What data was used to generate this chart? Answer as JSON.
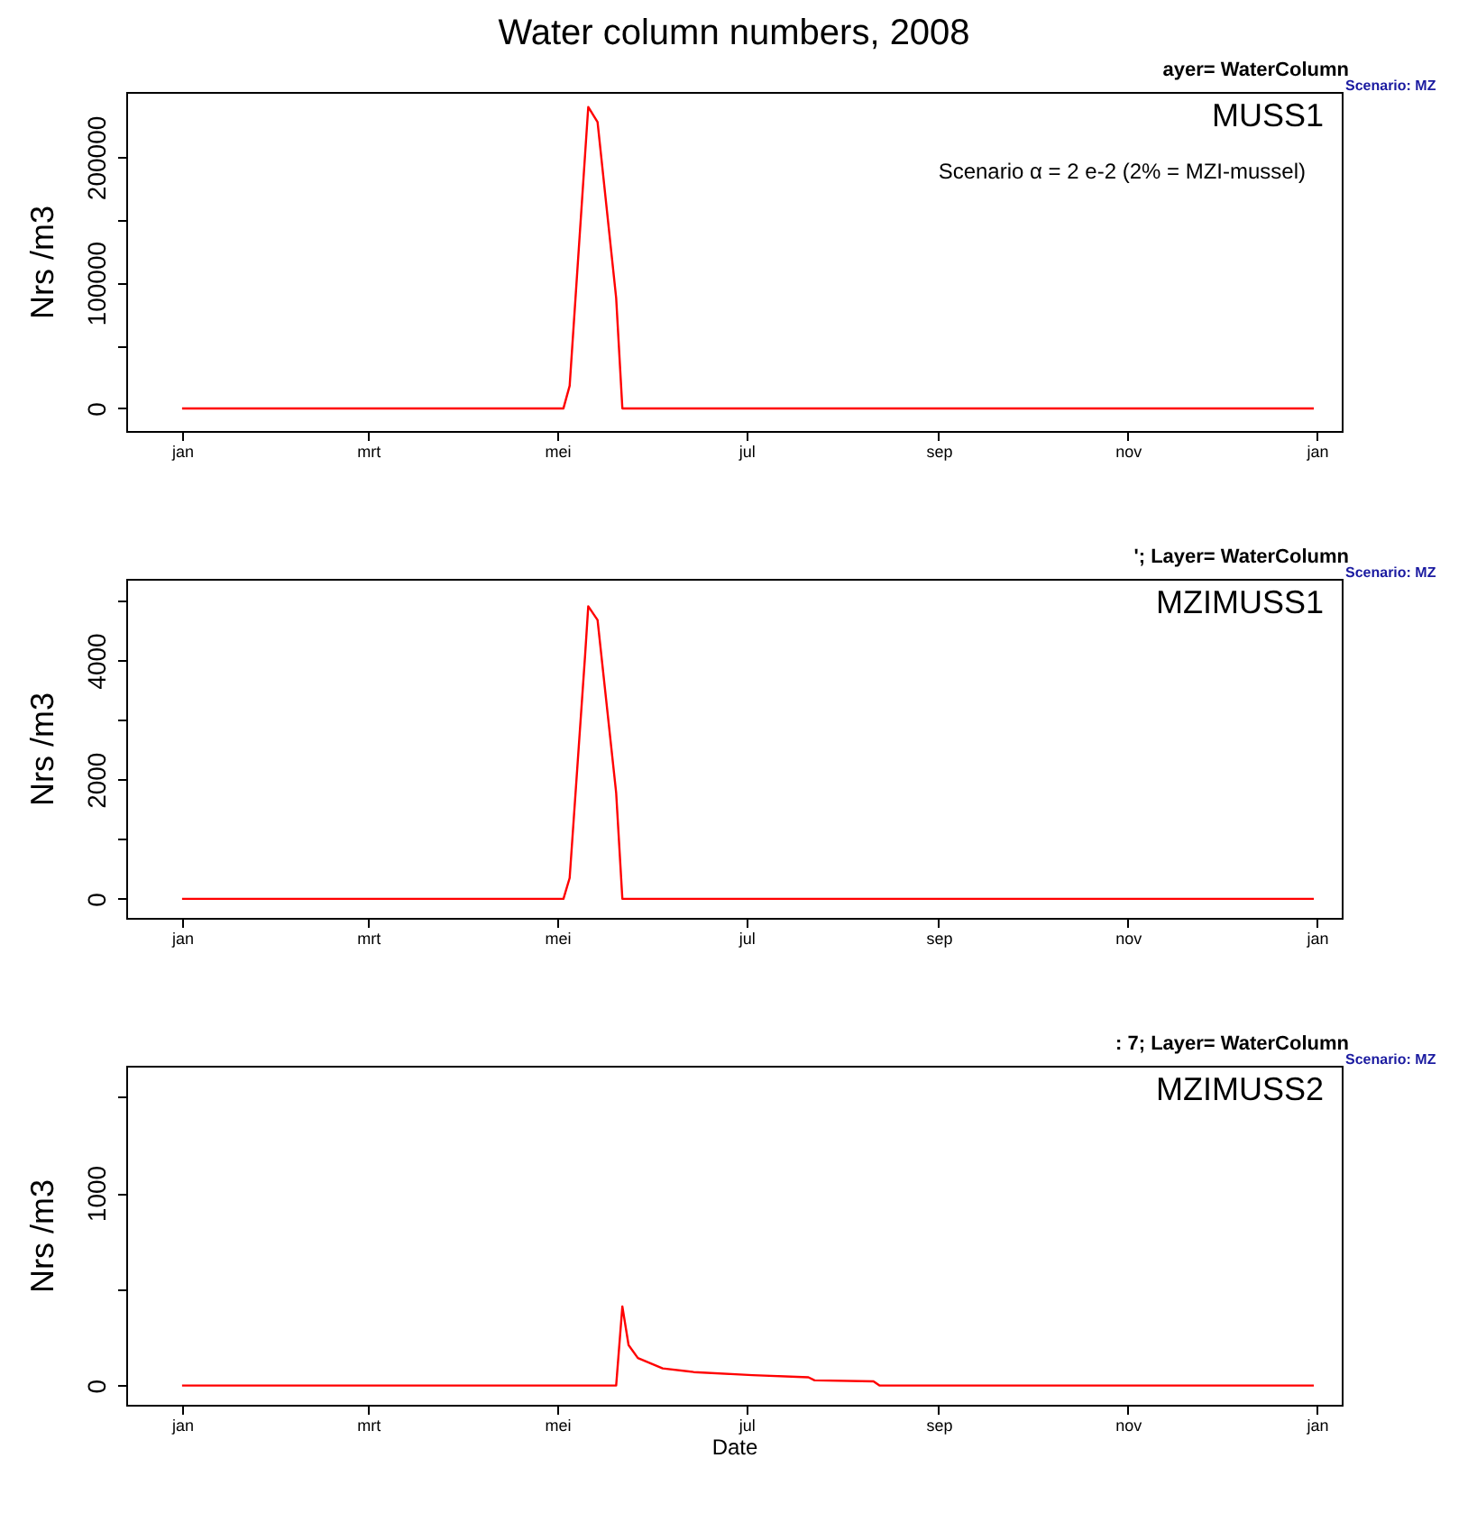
{
  "chart_data": [
    {
      "type": "line",
      "title": "Water column numbers, 2008",
      "ylabel": "Nrs /m3",
      "annotations": [
        "MUSS1",
        "Scenario α = 2 e-2 (2% = MZI-mussel)",
        "ayer= WaterColumn",
        "Scenario: MZ"
      ],
      "xlim": [
        "2007-12-14",
        "2009-01-09"
      ],
      "xticks": [
        {
          "value": "2008-01-01",
          "label": "jan"
        },
        {
          "value": "2008-03-01",
          "label": "mrt"
        },
        {
          "value": "2008-05-01",
          "label": "mei"
        },
        {
          "value": "2008-07-01",
          "label": "jul"
        },
        {
          "value": "2008-09-01",
          "label": "sep"
        },
        {
          "value": "2008-11-01",
          "label": "nov"
        },
        {
          "value": "2009-01-01",
          "label": "jan"
        }
      ],
      "ylim": [
        -18000,
        252000
      ],
      "yticks": [
        0,
        {
          "value": 50000,
          "label": null
        },
        100000,
        {
          "value": 150000,
          "label": null
        },
        200000
      ],
      "x": [
        "2008-01-01",
        "2008-05-03",
        "2008-05-05",
        "2008-05-10",
        "2008-05-11",
        "2008-05-14",
        "2008-05-20",
        "2008-05-22",
        "2008-12-31"
      ],
      "series": [
        {
          "color": "#ff0000",
          "values": [
            0,
            0,
            18000,
            203000,
            240000,
            228000,
            88000,
            0,
            0
          ]
        }
      ]
    },
    {
      "type": "line",
      "ylabel": "Nrs /m3",
      "annotations": [
        "MZIMUSS1",
        "'; Layer= WaterColumn",
        "Scenario: MZ"
      ],
      "xlim": [
        "2007-12-14",
        "2009-01-09"
      ],
      "xticks": [
        {
          "value": "2008-01-01",
          "label": "jan"
        },
        {
          "value": "2008-03-01",
          "label": "mrt"
        },
        {
          "value": "2008-05-01",
          "label": "mei"
        },
        {
          "value": "2008-07-01",
          "label": "jul"
        },
        {
          "value": "2008-09-01",
          "label": "sep"
        },
        {
          "value": "2008-11-01",
          "label": "nov"
        },
        {
          "value": "2009-01-01",
          "label": "jan"
        }
      ],
      "ylim": [
        -320,
        5370
      ],
      "yticks": [
        0,
        {
          "value": 1000,
          "label": null
        },
        2000,
        {
          "value": 3000,
          "label": null
        },
        4000,
        {
          "value": 5000,
          "label": null
        }
      ],
      "x": [
        "2008-01-01",
        "2008-05-03",
        "2008-05-05",
        "2008-05-10",
        "2008-05-11",
        "2008-05-14",
        "2008-05-20",
        "2008-05-22",
        "2008-12-31"
      ],
      "series": [
        {
          "color": "#ff0000",
          "values": [
            0,
            0,
            350,
            4100,
            4910,
            4680,
            1780,
            0,
            0
          ]
        }
      ]
    },
    {
      "type": "line",
      "ylabel": "Nrs /m3",
      "xlabel": "Date",
      "annotations": [
        "MZIMUSS2",
        ": 7; Layer= WaterColumn",
        "Scenario: MZ"
      ],
      "xlim": [
        "2007-12-14",
        "2009-01-09"
      ],
      "xticks": [
        {
          "value": "2008-01-01",
          "label": "jan"
        },
        {
          "value": "2008-03-01",
          "label": "mrt"
        },
        {
          "value": "2008-05-01",
          "label": "mei"
        },
        {
          "value": "2008-07-01",
          "label": "jul"
        },
        {
          "value": "2008-09-01",
          "label": "sep"
        },
        {
          "value": "2008-11-01",
          "label": "nov"
        },
        {
          "value": "2009-01-01",
          "label": "jan"
        }
      ],
      "ylim": [
        -100,
        1660
      ],
      "yticks": [
        0,
        {
          "value": 500,
          "label": null
        },
        1000,
        {
          "value": 1500,
          "label": null
        }
      ],
      "x": [
        "2008-01-01",
        "2008-05-20",
        "2008-05-22",
        "2008-05-24",
        "2008-05-27",
        "2008-06-04",
        "2008-06-14",
        "2008-07-03",
        "2008-07-21",
        "2008-07-23",
        "2008-08-11",
        "2008-08-13",
        "2008-12-31"
      ],
      "series": [
        {
          "color": "#ff0000",
          "values": [
            0,
            0,
            411,
            210,
            143,
            89,
            70,
            54,
            43,
            27,
            22,
            0,
            0
          ]
        }
      ]
    }
  ]
}
